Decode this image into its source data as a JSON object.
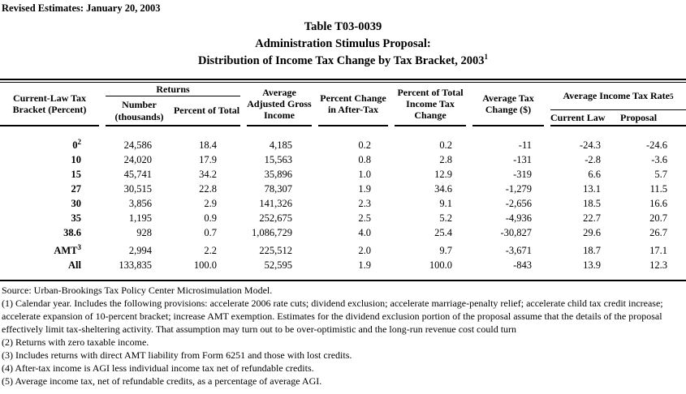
{
  "page": {
    "revised_note": "Revised Estimates: January 20, 2003",
    "title_line1": "Table T03-0039",
    "title_line2": "Administration Stimulus Proposal:",
    "title_line3": "Distribution of Income Tax Change by Tax Bracket, 2003",
    "title_line3_sup": "1"
  },
  "table": {
    "col_bracket_header": "Current-Law Tax Bracket (Percent)",
    "group_returns": "Returns",
    "col_number": "Number (thousands)",
    "col_pct_total": "Percent of Total",
    "col_avg_agi": "Average Adjusted Gross Income",
    "col_pct_change_after_tax": "Percent Change in After-Tax",
    "col_pct_total_tax_change": "Percent of Total Income Tax Change",
    "col_avg_tax_change": "Average Tax Change ($)",
    "group_rate": "Average Income Tax Rate",
    "group_rate_sup": "5",
    "col_current_law": "Current Law",
    "col_proposal": "Proposal",
    "rows": [
      {
        "bracket": "0",
        "sup": "2",
        "values": [
          "24,586",
          "18.4",
          "4,185",
          "0.2",
          "0.2",
          "-11",
          "-24.3",
          "-24.6"
        ]
      },
      {
        "bracket": "10",
        "sup": "",
        "values": [
          "24,020",
          "17.9",
          "15,563",
          "0.8",
          "2.8",
          "-131",
          "-2.8",
          "-3.6"
        ]
      },
      {
        "bracket": "15",
        "sup": "",
        "values": [
          "45,741",
          "34.2",
          "35,896",
          "1.0",
          "12.9",
          "-319",
          "6.6",
          "5.7"
        ]
      },
      {
        "bracket": "27",
        "sup": "",
        "values": [
          "30,515",
          "22.8",
          "78,307",
          "1.9",
          "34.6",
          "-1,279",
          "13.1",
          "11.5"
        ]
      },
      {
        "bracket": "30",
        "sup": "",
        "values": [
          "3,856",
          "2.9",
          "141,326",
          "2.3",
          "9.1",
          "-2,656",
          "18.5",
          "16.6"
        ]
      },
      {
        "bracket": "35",
        "sup": "",
        "values": [
          "1,195",
          "0.9",
          "252,675",
          "2.5",
          "5.2",
          "-4,936",
          "22.7",
          "20.7"
        ]
      },
      {
        "bracket": "38.6",
        "sup": "",
        "values": [
          "928",
          "0.7",
          "1,086,729",
          "4.0",
          "25.4",
          "-30,827",
          "29.6",
          "26.7"
        ]
      },
      {
        "bracket": "AMT",
        "sup": "3",
        "values": [
          "2,994",
          "2.2",
          "225,512",
          "2.0",
          "9.7",
          "-3,671",
          "18.7",
          "17.1"
        ]
      },
      {
        "bracket": "All",
        "sup": "",
        "values": [
          "133,835",
          "100.0",
          "52,595",
          "1.9",
          "100.0",
          "-843",
          "13.9",
          "12.3"
        ]
      }
    ]
  },
  "footnotes": {
    "source": "Source: Urban-Brookings Tax Policy Center Microsimulation Model.",
    "note1": "(1) Calendar year. Includes the following provisions: accelerate 2006 rate cuts; dividend exclusion; accelerate marriage-penalty relief; accelerate child tax credit increase; accelerate expansion of 10-percent bracket; increase AMT exemption. Estimates for the dividend exclusion portion of the proposal assume that the details of the proposal effectively limit tax-sheltering activity.  That assumption may turn out to be over-optimistic and the long-run revenue cost could turn",
    "note2": "(2) Returns with zero taxable income.",
    "note3": "(3) Includes returns with direct AMT liability from Form 6251 and those with lost credits.",
    "note4": "(4) After-tax income is AGI less individual income tax net of refundable credits.",
    "note5": "(5) Average income tax, net of refundable credits, as a percentage of average AGI."
  }
}
